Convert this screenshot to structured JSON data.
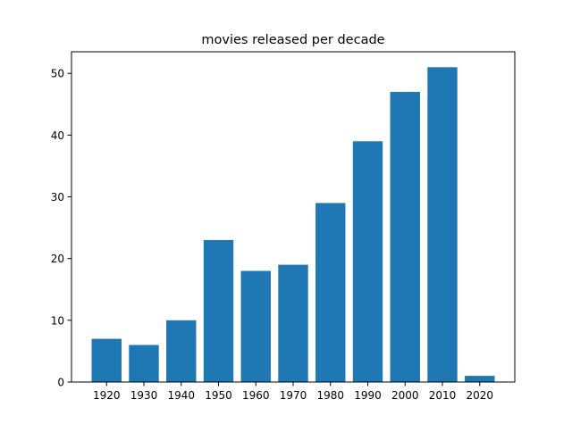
{
  "chart_data": {
    "type": "bar",
    "title": "movies released per decade",
    "xlabel": "",
    "ylabel": "",
    "categories": [
      "1920",
      "1930",
      "1940",
      "1950",
      "1960",
      "1970",
      "1980",
      "1990",
      "2000",
      "2010",
      "2020"
    ],
    "values": [
      7,
      6,
      10,
      23,
      18,
      19,
      29,
      39,
      47,
      51,
      1
    ],
    "ylim": [
      0,
      53.5
    ],
    "yticks": [
      0,
      10,
      20,
      30,
      40,
      50
    ],
    "grid": false,
    "legend": "none",
    "colors": {
      "bar": "#1f77b4",
      "axis": "#000000",
      "background": "#ffffff"
    }
  }
}
